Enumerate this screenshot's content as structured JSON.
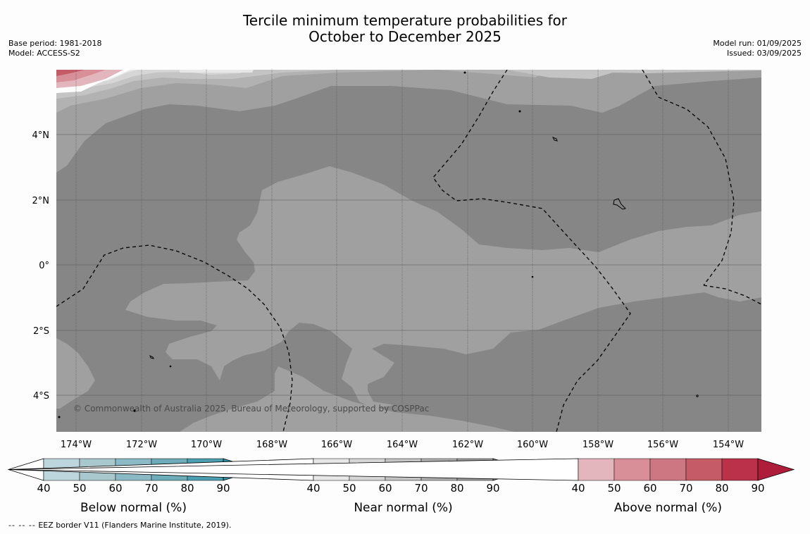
{
  "header": {
    "title_line1": "Tercile minimum temperature probabilities for",
    "title_line2": "October to December 2025",
    "base_period": "Base period: 1981-2018",
    "model": "Model: ACCESS-S2",
    "model_run": "Model run: 01/09/2025",
    "issued": "Issued: 03/09/2025"
  },
  "map": {
    "copyright": "© Commonwealth of Australia 2025, Bureau of Meteorology, supported by COSPPac",
    "lon_labels": [
      "174°W",
      "172°W",
      "170°W",
      "168°W",
      "166°W",
      "164°W",
      "162°W",
      "160°W",
      "158°W",
      "156°W",
      "154°W"
    ],
    "lat_labels": [
      "4°N",
      "2°N",
      "0°",
      "2°S",
      "4°S"
    ]
  },
  "legends": [
    {
      "title": "Below normal (%)",
      "ticks": [
        "40",
        "50",
        "60",
        "70",
        "80",
        "90"
      ],
      "colors": [
        "#bdd5dc",
        "#a8c8cd",
        "#8bb9c5",
        "#6dacb9",
        "#4c9fb0",
        "#2f8fa6"
      ]
    },
    {
      "title": "Near normal (%)",
      "ticks": [
        "40",
        "50",
        "60",
        "70",
        "80",
        "90"
      ],
      "colors": [
        "#e7e7e7",
        "#d6d6d6",
        "#c4c4c4",
        "#b2b2b2",
        "#a0a0a0",
        "#868686"
      ]
    },
    {
      "title": "Above normal (%)",
      "ticks": [
        "40",
        "50",
        "60",
        "70",
        "80",
        "90"
      ],
      "colors": [
        "#e2b6bc",
        "#d88f98",
        "#cc7781",
        "#c45b67",
        "#ba3149",
        "#ae1e3a"
      ]
    }
  ],
  "footnote": {
    "dashes": "-- -- --",
    "text": "EEZ border V11 (Flanders Marine Institute, 2019)."
  }
}
